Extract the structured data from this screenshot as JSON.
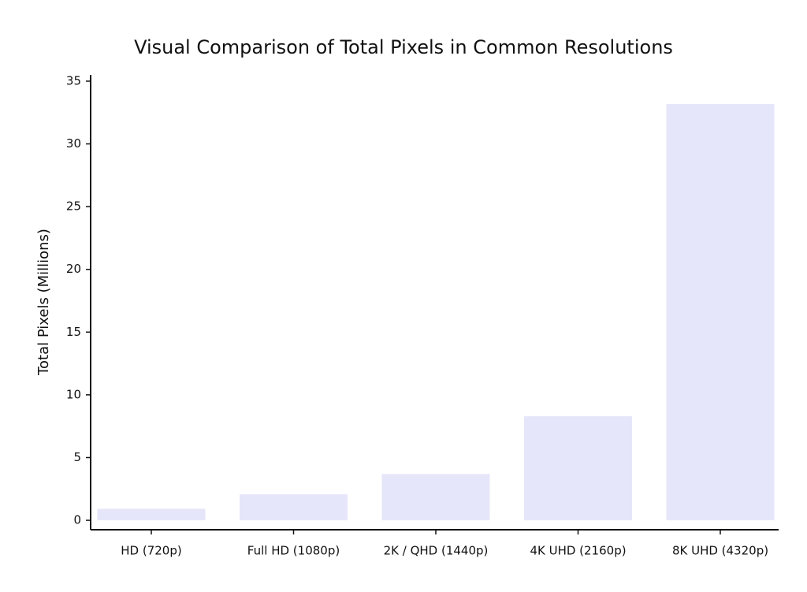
{
  "chart_data": {
    "type": "bar",
    "title": "Visual Comparison of Total Pixels in Common Resolutions",
    "y_label": "Total Pixels (Millions)",
    "categories": [
      "HD (720p)",
      "Full HD (1080p)",
      "2K / QHD (1440p)",
      "4K UHD (2160p)",
      "8K UHD (4320p)"
    ],
    "values": [
      0.92,
      2.07,
      3.69,
      8.29,
      33.18
    ],
    "color": "#e6e6fa",
    "ylim": [
      -0.75,
      35.5
    ],
    "yticks": [
      0,
      5,
      10,
      15,
      20,
      25,
      30,
      35
    ],
    "grid": false
  }
}
